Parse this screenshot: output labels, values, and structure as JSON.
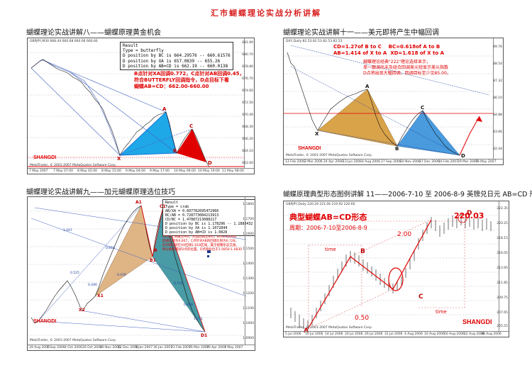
{
  "page_title": "汇市蝴蝶理论实战分析讲解",
  "panels": {
    "p1": {
      "caption": "蝴蝶理论实战讲解八——蝴蝶原理黄金机会",
      "header": "GBPJPY,M30  668.44 660.68 660.66 660.66",
      "info_lines": [
        "Result",
        "Type = butterfly",
        "D position by BC is 664.29576 -- 660.61576",
        "D position by XA is 657.0839 -- 655.26",
        "D position by AB=CD is 662.19 -- 660.0138"
      ],
      "red_note": [
        "B点针对XA回调0.772，C点针对AB回调0.45，",
        "符合BUTTERFLY回调指令，D点目标下看",
        "蝴蝶AB=CD：662.00-660.00"
      ],
      "labels": {
        "x": "X",
        "a": "A",
        "b": "B",
        "c": "C",
        "d": "D"
      },
      "brand": "SHANGDI",
      "footer": "MetaTrader, © 2001-2007 MetaQuotes Software Corp.",
      "dates": [
        "7 May 2007",
        "7 May 07:00",
        "8 May 02:00",
        "8 May 15:00",
        "9 May 04:00",
        "9 May 17:00",
        "10 May 06:00",
        "10 May 19:00",
        "11 May 08:00"
      ],
      "prices": [
        "681.90",
        "680.70",
        "678.80",
        "676.70",
        "674.60",
        "672.50",
        "670.40",
        "668.30",
        "666.20",
        "664.10",
        "662.00"
      ]
    },
    "p2": {
      "caption": "蝴蝶理论实战讲解十一——美元即将产生中幅回调",
      "header": "DXY,Daily  82.53 82.53 82.53 82.53",
      "ratios": [
        "CD=1.27of B to C",
        "BC=0.618of A to B",
        "AB=1.414 of X to A",
        "XD=1.618 of X to A"
      ],
      "note": [
        "蝴蝶理论经典\"222\"理论选择显示，",
        "单一跟调尚未及组合回调美元短显示美元指数",
        "D点将出现大幅回调，回调目标至少见85.00。"
      ],
      "labels": {
        "x": "X",
        "a": "A",
        "b": "B",
        "c": "C",
        "d": "D"
      },
      "brand": "SHANGDI",
      "footer": "MetaTrader, © 2001-2007 MetaQuotes Software Corp.",
      "dates": [
        "13 Feb 2006",
        "3 Mar 2006",
        "24 Apr 2006",
        "13 Jun 2006",
        "4 Aug 2006",
        "27 Sep 2006",
        "10 Nov 2006",
        "27 Dec 2006",
        "16 Feb 2007",
        "29 Mar 2007",
        "18 May 2007"
      ],
      "prices": [
        "89.76",
        "88.54",
        "87.32",
        "86.10",
        "84.88",
        "83.66",
        "82.44"
      ]
    },
    "p3": {
      "caption": "蝴蝶理论实战讲解九——加元蝴蝶原理选位技巧",
      "info_lines": [
        "Result",
        "Type = crab",
        "AB/XA = 0.607782695472966",
        "BC/AB = 0.728773084213913",
        "CD/BC = 1.47887213088217",
        "D position by BC is 1.178296 -- 1.1888432",
        "D position by XA is 1.1072844",
        "D position by AB=CD is 1.0828"
      ],
      "red_note": [
        "X点向上突破至A点，然后回调至B点，B点针对XA的",
        "回调比例为0.607，C点针对AB的回调比例为0.728，",
        "D点目标则在XA回调1.618区域，属于螃蟹形态交易。",
        "所以要把握好D点的位置，D点目标位于1.0850-1.0830"
      ],
      "labels": {
        "x1": "X1",
        "x2": "X2",
        "a1": "A1",
        "b1": "B1",
        "c1": "C1",
        "d1": "D1",
        "b": "B"
      },
      "ratio_labels": [
        "0.618",
        "0.476",
        "0.525",
        "0.446",
        "1.047",
        "0.742",
        "0.838",
        "1.271"
      ],
      "brand": "SHANGDI",
      "footer": "MetaTrader, © 2001-2007 MetaQuotes Software Corp.",
      "dates": [
        "19 Aug 2006",
        "7 Sep 2006",
        "4 Oct 2006",
        "26 Oct 2006",
        "20 Nov 2006",
        "12 Dec 2006",
        "5 Jan 2007",
        "30 Jan 2007",
        "21 Feb 2007",
        "16 Mar 2007",
        "10 Apr 2007",
        "4 May 2007"
      ],
      "prices": [
        "1.1800",
        "1.1700",
        "1.1600",
        "1.1500",
        "1.1400",
        "1.1300",
        "1.1200",
        "1.1100",
        "1.1000",
        "1.0900"
      ]
    },
    "p4": {
      "caption": "蝴蝶原理典型形态图例讲解 11——2006-7-10 至 2006-8-9 英镑兑日元 AB=CD 形态",
      "header": "GBPJPY,Daily  220.29 221.06 219.92 220.60",
      "title_big": "典型蝴蝶AB=CD形态",
      "period": "周期：2006-7-10至2006-8-9",
      "value_label": "220.03",
      "ratio_top": "2.00",
      "ratio_bottom": "0.50",
      "time_label": "time",
      "labels": {
        "a": "A",
        "b": "B",
        "c": "C",
        "d": "D"
      },
      "brand": "SHANGDI",
      "footer": "MetaTrader, © 2001-2007 MetaQuotes Software Corp.",
      "dates": [
        "5 Jul 2006",
        "10 Jul 2006",
        "14 Jul 2006",
        "20 Jul 2006",
        "26 Jul 2006",
        "31 Jul 2006",
        "4 Aug 2006",
        "10 Aug 2006",
        "16 Aug 2006",
        "22 Aug 2006",
        "28 Aug 2006"
      ],
      "prices": [
        "222.35",
        "220.25",
        "218.15",
        "216.05",
        "213.95",
        "211.85",
        "209.75",
        "207.65",
        "205.55"
      ]
    }
  },
  "colors": {
    "red": "#e00000",
    "blue_fill": "#1fa8e8",
    "gold_fill": "#d9a34a",
    "teal_fill": "#2a8a96",
    "tan_fill": "#dcae7a"
  }
}
